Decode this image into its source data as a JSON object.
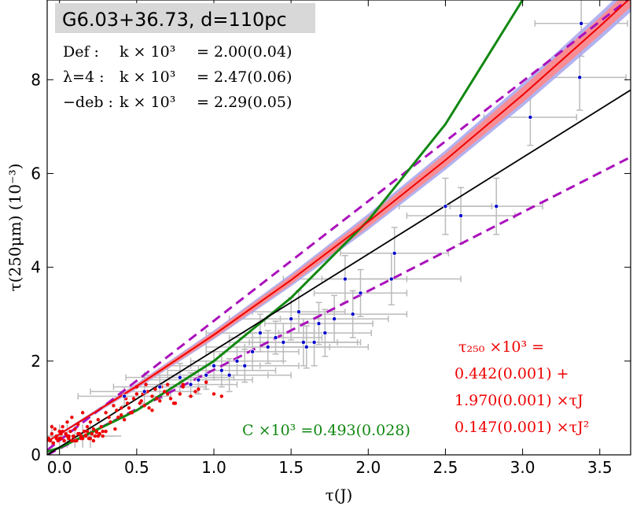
{
  "chart_data": {
    "type": "scatter",
    "title": "G6.03+36.73, d=110pc",
    "xlabel": "τ(J)",
    "ylabel": "τ(250μm) (10⁻³)",
    "xlim": [
      -0.08,
      3.7
    ],
    "ylim": [
      0,
      9.7
    ],
    "x_ticks": [
      0.0,
      0.5,
      1.0,
      1.5,
      2.0,
      2.5,
      3.0,
      3.5
    ],
    "x_tick_labels": [
      "0.0",
      "0.5",
      "1.0",
      "1.5",
      "2.0",
      "2.5",
      "3.0",
      "3.5"
    ],
    "y_ticks": [
      0,
      2,
      4,
      6,
      8
    ],
    "y_tick_labels": [
      "0",
      "2",
      "4",
      "6",
      "8"
    ],
    "legend_lines": [
      {
        "prefix": "Def :",
        "label": "k × 10³",
        "value": "= 2.00(0.04)"
      },
      {
        "prefix": "λ=4 :",
        "label": "k × 10³",
        "value": "= 2.47(0.06)"
      },
      {
        "prefix": "−deb :",
        "label": "k × 10³",
        "value": "= 2.29(0.05)"
      }
    ],
    "green_annotation": "C ×10³ =0.493(0.028)",
    "fit_annotation": {
      "line1": "τ₂₅₀ ×10³  =",
      "line2": "0.442(0.001) +",
      "line3": "1.970(0.001) ×τJ",
      "line4": "0.147(0.001) ×τJ²"
    },
    "colors": {
      "red": "#ee0000",
      "blue": "#0000cc",
      "green": "#118811",
      "magenta": "#aa11bb",
      "black": "#000000",
      "band_red": "#ff8888",
      "band_blue": "#aaaaee",
      "errorbar": "#bbbbbb",
      "title_box": "#d8d8d8"
    },
    "series": [
      {
        "name": "black linear fit",
        "kind": "line",
        "x": [
          -0.08,
          3.7
        ],
        "y": [
          0.0,
          7.78
        ]
      },
      {
        "name": "red quadratic fit",
        "kind": "line",
        "x": [
          -0.08,
          0.0,
          0.5,
          1.0,
          1.5,
          2.0,
          2.5,
          3.0,
          3.5,
          3.7
        ],
        "y": [
          0.285,
          0.442,
          1.464,
          2.559,
          3.728,
          4.97,
          6.285,
          7.675,
          9.138,
          9.745
        ]
      },
      {
        "name": "green curve",
        "kind": "line",
        "x": [
          -0.08,
          0.0,
          0.5,
          1.0,
          1.5,
          2.0,
          2.5,
          3.0
        ],
        "y": [
          0.07,
          0.15,
          0.95,
          2.0,
          3.35,
          5.0,
          7.05,
          9.7
        ]
      },
      {
        "name": "magenta upper dashed",
        "kind": "dashed",
        "x": [
          -0.08,
          3.7
        ],
        "y": [
          0.1,
          9.75
        ]
      },
      {
        "name": "magenta lower dashed",
        "kind": "dashed",
        "x": [
          -0.08,
          3.7
        ],
        "y": [
          0.0,
          6.35
        ]
      },
      {
        "name": "blue points",
        "kind": "errorbar-scatter",
        "x": [
          0.42,
          0.55,
          0.65,
          0.78,
          0.85,
          0.9,
          0.95,
          1.0,
          1.05,
          1.1,
          1.15,
          1.2,
          1.25,
          1.3,
          1.35,
          1.4,
          1.45,
          1.5,
          1.55,
          1.58,
          1.6,
          1.65,
          1.68,
          1.72,
          1.78,
          1.85,
          1.9,
          1.95,
          2.15,
          2.17,
          2.5,
          2.6,
          2.83,
          3.05,
          3.37,
          3.38
        ],
        "y": [
          1.25,
          1.35,
          1.45,
          1.65,
          1.5,
          1.6,
          1.7,
          1.9,
          1.8,
          1.7,
          2.0,
          1.9,
          2.2,
          2.6,
          2.3,
          2.5,
          2.4,
          2.9,
          3.05,
          2.4,
          2.3,
          2.4,
          2.8,
          2.6,
          2.9,
          3.75,
          3.0,
          3.45,
          3.75,
          4.3,
          5.3,
          5.1,
          5.3,
          7.2,
          8.05,
          9.2
        ],
        "xerr": [
          0.3,
          0.35,
          0.3,
          0.35,
          0.3,
          0.35,
          0.4,
          0.3,
          0.35,
          0.4,
          0.3,
          0.35,
          0.3,
          0.35,
          0.4,
          0.3,
          0.35,
          0.4,
          0.3,
          0.35,
          0.4,
          0.3,
          0.35,
          0.3,
          0.35,
          0.4,
          0.35,
          0.3,
          0.45,
          0.35,
          0.3,
          0.35,
          0.3,
          0.3,
          0.3,
          0.3
        ],
        "yerr": [
          0.2,
          0.25,
          0.25,
          0.3,
          0.25,
          0.3,
          0.3,
          0.3,
          0.35,
          0.35,
          0.3,
          0.35,
          0.4,
          0.4,
          0.35,
          0.35,
          0.4,
          0.45,
          0.45,
          0.5,
          0.45,
          0.5,
          0.45,
          0.5,
          0.5,
          0.5,
          0.5,
          0.5,
          0.55,
          0.55,
          0.6,
          0.6,
          0.6,
          0.6,
          0.7,
          0.7
        ]
      },
      {
        "name": "red points",
        "kind": "scatter",
        "x": [
          -0.06,
          -0.05,
          -0.04,
          -0.03,
          -0.02,
          -0.01,
          0.0,
          0.01,
          0.02,
          0.03,
          0.04,
          0.05,
          0.06,
          0.07,
          0.08,
          0.09,
          0.1,
          0.11,
          0.12,
          0.13,
          0.14,
          0.15,
          0.16,
          0.17,
          0.18,
          0.19,
          0.2,
          0.21,
          0.22,
          0.23,
          0.24,
          0.25,
          0.26,
          0.27,
          0.28,
          -0.05,
          -0.02,
          0.02,
          0.05,
          0.08,
          0.12,
          0.15,
          0.18,
          0.22,
          0.25,
          0.28,
          -0.04,
          0.0,
          0.03,
          0.06,
          0.1,
          0.14,
          0.2,
          0.26,
          0.3,
          0.33,
          0.36,
          0.38,
          0.4,
          0.42,
          0.44,
          0.46,
          0.48,
          0.5,
          0.52,
          0.54,
          0.56,
          0.58,
          0.6,
          0.62,
          0.65,
          0.68,
          0.7,
          0.72,
          0.75,
          0.78,
          0.8,
          0.85,
          0.9,
          0.95,
          0.3,
          0.32,
          0.35,
          0.37,
          0.4,
          0.43,
          0.45,
          0.47,
          0.5,
          0.53,
          0.55,
          0.57,
          0.6,
          0.63,
          0.66,
          0.7,
          0.74,
          0.8,
          0.88,
          0.95,
          1.0,
          1.05,
          1.1,
          -0.07,
          0.01,
          0.09,
          0.17,
          0.24
        ],
        "y": [
          0.3,
          0.45,
          0.25,
          0.55,
          0.4,
          0.3,
          0.5,
          0.35,
          0.6,
          0.3,
          0.45,
          0.7,
          0.35,
          0.5,
          0.8,
          0.4,
          0.55,
          0.3,
          0.65,
          0.45,
          0.35,
          0.9,
          0.5,
          0.4,
          0.6,
          0.35,
          0.7,
          0.45,
          0.55,
          0.4,
          0.5,
          0.75,
          0.45,
          0.6,
          0.4,
          0.6,
          0.35,
          0.5,
          0.4,
          0.3,
          0.45,
          0.35,
          0.5,
          0.3,
          0.4,
          0.5,
          0.25,
          0.35,
          0.3,
          0.4,
          0.3,
          0.4,
          0.35,
          0.45,
          0.5,
          0.7,
          0.55,
          0.8,
          1.0,
          0.75,
          1.1,
          0.9,
          1.2,
          1.45,
          1.1,
          1.3,
          1.5,
          1.0,
          1.25,
          1.4,
          1.15,
          1.35,
          1.5,
          1.2,
          1.1,
          1.3,
          1.45,
          1.25,
          1.4,
          1.55,
          0.9,
          0.8,
          1.05,
          0.95,
          0.85,
          1.2,
          1.0,
          0.9,
          1.3,
          1.15,
          1.05,
          1.35,
          0.95,
          1.2,
          1.45,
          1.3,
          1.1,
          1.5,
          1.35,
          1.55,
          1.3,
          1.25,
          1.7,
          0.35,
          0.45,
          0.38,
          0.42,
          0.48
        ]
      }
    ]
  }
}
